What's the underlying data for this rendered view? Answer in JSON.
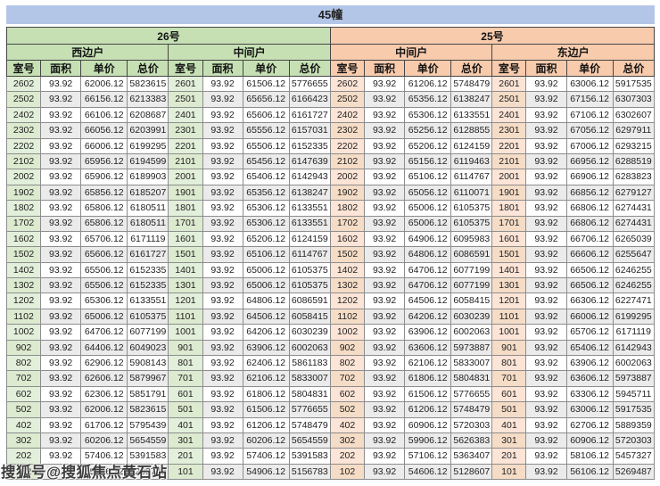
{
  "title": "45幢",
  "watermark": "搜狐号@搜狐焦点黄石站",
  "columns": [
    "室号",
    "面积",
    "单价",
    "总价"
  ],
  "colors": {
    "title_bg": "#b4c6e7",
    "green_header": "#c6e0b4",
    "green_room": "#e2efda",
    "orange_header": "#f8cbad",
    "orange_room": "#fce4d6",
    "alt_row": "#ebebeb"
  },
  "buildings": [
    {
      "name": "26号",
      "theme": "green",
      "units": [
        {
          "name": "西边户",
          "rows": [
            [
              "2602",
              "93.92",
              "62006.12",
              "5823615"
            ],
            [
              "2502",
              "93.92",
              "66156.12",
              "6213383"
            ],
            [
              "2402",
              "93.92",
              "66106.12",
              "6208687"
            ],
            [
              "2302",
              "93.92",
              "66056.12",
              "6203991"
            ],
            [
              "2202",
              "93.92",
              "66006.12",
              "6199295"
            ],
            [
              "2102",
              "93.92",
              "65956.12",
              "6194599"
            ],
            [
              "2002",
              "93.92",
              "65906.12",
              "6189903"
            ],
            [
              "1902",
              "93.92",
              "65856.12",
              "6185207"
            ],
            [
              "1802",
              "93.92",
              "65806.12",
              "6180511"
            ],
            [
              "1702",
              "93.92",
              "65806.12",
              "6180511"
            ],
            [
              "1602",
              "93.92",
              "65706.12",
              "6171119"
            ],
            [
              "1502",
              "93.92",
              "65606.12",
              "6161727"
            ],
            [
              "1402",
              "93.92",
              "65506.12",
              "6152335"
            ],
            [
              "1302",
              "93.92",
              "65506.12",
              "6152335"
            ],
            [
              "1202",
              "93.92",
              "65306.12",
              "6133551"
            ],
            [
              "1102",
              "93.92",
              "65006.12",
              "6105375"
            ],
            [
              "1002",
              "93.92",
              "64706.12",
              "6077199"
            ],
            [
              "902",
              "93.92",
              "64406.12",
              "6049023"
            ],
            [
              "802",
              "93.92",
              "62906.12",
              "5908143"
            ],
            [
              "702",
              "93.92",
              "62606.12",
              "5879967"
            ],
            [
              "602",
              "93.92",
              "62306.12",
              "5851791"
            ],
            [
              "502",
              "93.92",
              "62006.12",
              "5823615"
            ],
            [
              "402",
              "93.92",
              "61706.12",
              "5795439"
            ],
            [
              "302",
              "93.92",
              "60206.12",
              "5654559"
            ],
            [
              "202",
              "93.92",
              "57406.12",
              "5391583"
            ],
            [
              "102",
              "93.92",
              "55406.12",
              "5203743"
            ]
          ]
        },
        {
          "name": "中间户",
          "rows": [
            [
              "2601",
              "93.92",
              "61506.12",
              "5776655"
            ],
            [
              "2501",
              "93.92",
              "65656.12",
              "6166423"
            ],
            [
              "2401",
              "93.92",
              "65606.12",
              "6161727"
            ],
            [
              "2301",
              "93.92",
              "65556.12",
              "6157031"
            ],
            [
              "2201",
              "93.92",
              "65506.12",
              "6152335"
            ],
            [
              "2101",
              "93.92",
              "65456.12",
              "6147639"
            ],
            [
              "2001",
              "93.92",
              "65406.12",
              "6142943"
            ],
            [
              "1901",
              "93.92",
              "65356.12",
              "6138247"
            ],
            [
              "1801",
              "93.92",
              "65306.12",
              "6133551"
            ],
            [
              "1701",
              "93.92",
              "65306.12",
              "6133551"
            ],
            [
              "1601",
              "93.92",
              "65206.12",
              "6124159"
            ],
            [
              "1501",
              "93.92",
              "65106.12",
              "6114767"
            ],
            [
              "1401",
              "93.92",
              "65006.12",
              "6105375"
            ],
            [
              "1301",
              "93.92",
              "65006.12",
              "6105375"
            ],
            [
              "1201",
              "93.92",
              "64806.12",
              "6086591"
            ],
            [
              "1101",
              "93.92",
              "64506.12",
              "6058415"
            ],
            [
              "1001",
              "93.92",
              "64206.12",
              "6030239"
            ],
            [
              "901",
              "93.92",
              "63906.12",
              "6002063"
            ],
            [
              "801",
              "93.92",
              "62406.12",
              "5861183"
            ],
            [
              "701",
              "93.92",
              "62106.12",
              "5833007"
            ],
            [
              "601",
              "93.92",
              "61806.12",
              "5804831"
            ],
            [
              "501",
              "93.92",
              "61506.12",
              "5776655"
            ],
            [
              "401",
              "93.92",
              "61206.12",
              "5748479"
            ],
            [
              "301",
              "93.92",
              "60206.12",
              "5654559"
            ],
            [
              "201",
              "93.92",
              "57406.12",
              "5391583"
            ],
            [
              "101",
              "93.92",
              "54906.12",
              "5156783"
            ]
          ]
        }
      ]
    },
    {
      "name": "25号",
      "theme": "orange",
      "units": [
        {
          "name": "中间户",
          "rows": [
            [
              "2602",
              "93.92",
              "61206.12",
              "5748479"
            ],
            [
              "2502",
              "93.92",
              "65356.12",
              "6138247"
            ],
            [
              "2402",
              "93.92",
              "65306.12",
              "6133551"
            ],
            [
              "2302",
              "93.92",
              "65256.12",
              "6128855"
            ],
            [
              "2202",
              "93.92",
              "65206.12",
              "6124159"
            ],
            [
              "2102",
              "93.92",
              "65156.12",
              "6119463"
            ],
            [
              "2002",
              "93.92",
              "65106.12",
              "6114767"
            ],
            [
              "1902",
              "93.92",
              "65056.12",
              "6110071"
            ],
            [
              "1802",
              "93.92",
              "65006.12",
              "6105375"
            ],
            [
              "1702",
              "93.92",
              "65006.12",
              "6105375"
            ],
            [
              "1602",
              "93.92",
              "64906.12",
              "6095983"
            ],
            [
              "1502",
              "93.92",
              "64806.12",
              "6086591"
            ],
            [
              "1402",
              "93.92",
              "64706.12",
              "6077199"
            ],
            [
              "1302",
              "93.92",
              "64706.12",
              "6077199"
            ],
            [
              "1202",
              "93.92",
              "64506.12",
              "6058415"
            ],
            [
              "1102",
              "93.92",
              "64206.12",
              "6030239"
            ],
            [
              "1002",
              "93.92",
              "63906.12",
              "6002063"
            ],
            [
              "902",
              "93.92",
              "63606.12",
              "5973887"
            ],
            [
              "802",
              "93.92",
              "62106.12",
              "5833007"
            ],
            [
              "702",
              "93.92",
              "61806.12",
              "5804831"
            ],
            [
              "602",
              "93.92",
              "61506.12",
              "5776655"
            ],
            [
              "502",
              "93.92",
              "61206.12",
              "5748479"
            ],
            [
              "402",
              "93.92",
              "60906.12",
              "5720303"
            ],
            [
              "302",
              "93.92",
              "59906.12",
              "5626383"
            ],
            [
              "202",
              "93.92",
              "57106.12",
              "5363407"
            ],
            [
              "102",
              "93.92",
              "54606.12",
              "5128607"
            ]
          ]
        },
        {
          "name": "东边户",
          "rows": [
            [
              "2601",
              "93.92",
              "63006.12",
              "5917535"
            ],
            [
              "2501",
              "93.92",
              "67156.12",
              "6307303"
            ],
            [
              "2401",
              "93.92",
              "67106.12",
              "6302607"
            ],
            [
              "2301",
              "93.92",
              "67056.12",
              "6297911"
            ],
            [
              "2201",
              "93.92",
              "67006.12",
              "6293215"
            ],
            [
              "2101",
              "93.92",
              "66956.12",
              "6288519"
            ],
            [
              "2001",
              "93.92",
              "66906.12",
              "6283823"
            ],
            [
              "1901",
              "93.92",
              "66856.12",
              "6279127"
            ],
            [
              "1801",
              "93.92",
              "66806.12",
              "6274431"
            ],
            [
              "1701",
              "93.92",
              "66806.12",
              "6274431"
            ],
            [
              "1601",
              "93.92",
              "66706.12",
              "6265039"
            ],
            [
              "1501",
              "93.92",
              "66606.12",
              "6255647"
            ],
            [
              "1401",
              "93.92",
              "66506.12",
              "6246255"
            ],
            [
              "1301",
              "93.92",
              "66506.12",
              "6246255"
            ],
            [
              "1201",
              "93.92",
              "66306.12",
              "6227471"
            ],
            [
              "1101",
              "93.92",
              "66006.12",
              "6199295"
            ],
            [
              "1001",
              "93.92",
              "65706.12",
              "6171119"
            ],
            [
              "901",
              "93.92",
              "65406.12",
              "6142943"
            ],
            [
              "801",
              "93.92",
              "63906.12",
              "6002063"
            ],
            [
              "701",
              "93.92",
              "63606.12",
              "5973887"
            ],
            [
              "601",
              "93.92",
              "63306.12",
              "5945711"
            ],
            [
              "501",
              "93.92",
              "63006.12",
              "5917535"
            ],
            [
              "401",
              "93.92",
              "62706.12",
              "5889359"
            ],
            [
              "301",
              "93.92",
              "60906.12",
              "5720303"
            ],
            [
              "201",
              "93.92",
              "58106.12",
              "5457327"
            ],
            [
              "101",
              "93.92",
              "56106.12",
              "5269487"
            ]
          ]
        }
      ]
    }
  ]
}
